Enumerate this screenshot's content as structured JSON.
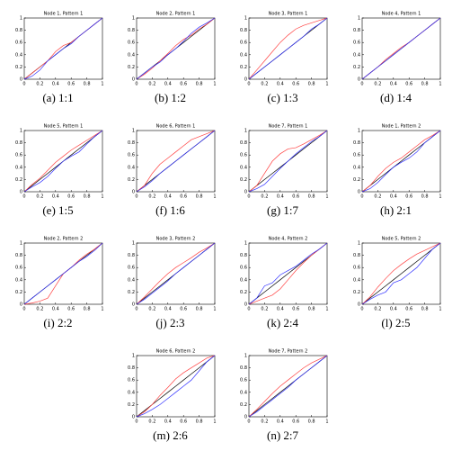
{
  "chart_data": [
    {
      "type": "line",
      "title": "Node 1, Pattern 1",
      "caption": "(a) 1:1",
      "x": [
        0,
        0.1,
        0.2,
        0.3,
        0.4,
        0.5,
        0.6,
        0.7,
        0.8,
        0.9,
        1
      ],
      "xlim": [
        0,
        1
      ],
      "ylim": [
        0,
        1
      ],
      "xticks": [
        0,
        0.2,
        0.4,
        0.6,
        0.8,
        1
      ],
      "yticks": [
        0,
        0.2,
        0.4,
        0.6,
        0.8,
        1
      ],
      "series": [
        {
          "color": "#000000",
          "values": [
            0,
            0.1,
            0.2,
            0.3,
            0.4,
            0.5,
            0.6,
            0.7,
            0.8,
            0.9,
            1
          ]
        },
        {
          "color": "#ff4040",
          "values": [
            0,
            0.1,
            0.2,
            0.3,
            0.45,
            0.55,
            0.6,
            0.7,
            0.8,
            0.9,
            1
          ]
        },
        {
          "color": "#3030ff",
          "values": [
            0,
            0.05,
            0.15,
            0.3,
            0.4,
            0.5,
            0.58,
            0.7,
            0.8,
            0.9,
            1
          ]
        }
      ]
    },
    {
      "type": "line",
      "title": "Node 2, Pattern 1",
      "caption": "(b) 1:2",
      "x": [
        0,
        0.1,
        0.2,
        0.3,
        0.4,
        0.5,
        0.6,
        0.7,
        0.8,
        0.9,
        1
      ],
      "xlim": [
        0,
        1
      ],
      "ylim": [
        0,
        1
      ],
      "xticks": [
        0,
        0.2,
        0.4,
        0.6,
        0.8,
        1
      ],
      "yticks": [
        0,
        0.2,
        0.4,
        0.6,
        0.8,
        1
      ],
      "series": [
        {
          "color": "#000000",
          "values": [
            0,
            0.1,
            0.2,
            0.3,
            0.4,
            0.5,
            0.6,
            0.7,
            0.8,
            0.9,
            1
          ]
        },
        {
          "color": "#ff4040",
          "values": [
            0,
            0.08,
            0.18,
            0.3,
            0.42,
            0.55,
            0.65,
            0.72,
            0.82,
            0.9,
            1
          ]
        },
        {
          "color": "#3030ff",
          "values": [
            0,
            0.1,
            0.2,
            0.28,
            0.4,
            0.5,
            0.62,
            0.75,
            0.85,
            0.92,
            1
          ]
        }
      ]
    },
    {
      "type": "line",
      "title": "Node 3, Pattern 1",
      "caption": "(c) 1:3",
      "x": [
        0,
        0.1,
        0.2,
        0.3,
        0.4,
        0.5,
        0.6,
        0.7,
        0.8,
        0.9,
        1
      ],
      "xlim": [
        0,
        1
      ],
      "ylim": [
        0,
        1
      ],
      "xticks": [
        0,
        0.2,
        0.4,
        0.6,
        0.8,
        1
      ],
      "yticks": [
        0,
        0.2,
        0.4,
        0.6,
        0.8,
        1
      ],
      "series": [
        {
          "color": "#000000",
          "values": [
            0,
            0.1,
            0.2,
            0.3,
            0.4,
            0.5,
            0.6,
            0.7,
            0.8,
            0.9,
            1
          ]
        },
        {
          "color": "#ff4040",
          "values": [
            0,
            0.15,
            0.3,
            0.45,
            0.6,
            0.72,
            0.82,
            0.88,
            0.92,
            0.96,
            1
          ]
        },
        {
          "color": "#3030ff",
          "values": [
            0,
            0.1,
            0.2,
            0.3,
            0.4,
            0.5,
            0.6,
            0.7,
            0.82,
            0.9,
            1
          ]
        }
      ]
    },
    {
      "type": "line",
      "title": "Node 4, Pattern 1",
      "caption": "(d) 1:4",
      "x": [
        0,
        0.1,
        0.2,
        0.3,
        0.4,
        0.5,
        0.6,
        0.7,
        0.8,
        0.9,
        1
      ],
      "xlim": [
        0,
        1
      ],
      "ylim": [
        0,
        1
      ],
      "xticks": [
        0,
        0.2,
        0.4,
        0.6,
        0.8,
        1
      ],
      "yticks": [
        0,
        0.2,
        0.4,
        0.6,
        0.8,
        1
      ],
      "series": [
        {
          "color": "#000000",
          "values": [
            0,
            0.1,
            0.2,
            0.3,
            0.4,
            0.5,
            0.6,
            0.7,
            0.8,
            0.9,
            1
          ]
        },
        {
          "color": "#ff4040",
          "values": [
            0,
            0.1,
            0.2,
            0.32,
            0.42,
            0.52,
            0.6,
            0.7,
            0.8,
            0.9,
            1
          ]
        },
        {
          "color": "#3030ff",
          "values": [
            0,
            0.1,
            0.2,
            0.3,
            0.4,
            0.5,
            0.6,
            0.7,
            0.8,
            0.9,
            1
          ]
        }
      ]
    },
    {
      "type": "line",
      "title": "Node 5, Pattern 1",
      "caption": "(e) 1:5",
      "x": [
        0,
        0.1,
        0.2,
        0.3,
        0.4,
        0.5,
        0.6,
        0.7,
        0.8,
        0.9,
        1
      ],
      "xlim": [
        0,
        1
      ],
      "ylim": [
        0,
        1
      ],
      "xticks": [
        0,
        0.2,
        0.4,
        0.6,
        0.8,
        1
      ],
      "yticks": [
        0,
        0.2,
        0.4,
        0.6,
        0.8,
        1
      ],
      "series": [
        {
          "color": "#000000",
          "values": [
            0,
            0.1,
            0.2,
            0.3,
            0.4,
            0.5,
            0.6,
            0.7,
            0.8,
            0.9,
            1
          ]
        },
        {
          "color": "#ff4040",
          "values": [
            0,
            0.12,
            0.22,
            0.35,
            0.48,
            0.58,
            0.68,
            0.76,
            0.84,
            0.92,
            1
          ]
        },
        {
          "color": "#3030ff",
          "values": [
            0,
            0.08,
            0.15,
            0.25,
            0.38,
            0.5,
            0.58,
            0.65,
            0.78,
            0.9,
            1
          ]
        }
      ]
    },
    {
      "type": "line",
      "title": "Node 6, Pattern 1",
      "caption": "(f) 1:6",
      "x": [
        0,
        0.1,
        0.2,
        0.3,
        0.4,
        0.5,
        0.6,
        0.7,
        0.8,
        0.9,
        1
      ],
      "xlim": [
        0,
        1
      ],
      "ylim": [
        0,
        1
      ],
      "xticks": [
        0,
        0.2,
        0.4,
        0.6,
        0.8,
        1
      ],
      "yticks": [
        0,
        0.2,
        0.4,
        0.6,
        0.8,
        1
      ],
      "series": [
        {
          "color": "#000000",
          "values": [
            0,
            0.1,
            0.2,
            0.3,
            0.4,
            0.5,
            0.6,
            0.7,
            0.8,
            0.9,
            1
          ]
        },
        {
          "color": "#ff4040",
          "values": [
            0,
            0.1,
            0.3,
            0.45,
            0.55,
            0.65,
            0.75,
            0.85,
            0.9,
            0.95,
            1
          ]
        },
        {
          "color": "#3030ff",
          "values": [
            0,
            0.08,
            0.18,
            0.3,
            0.4,
            0.5,
            0.6,
            0.7,
            0.8,
            0.9,
            1
          ]
        }
      ]
    },
    {
      "type": "line",
      "title": "Node 7, Pattern 1",
      "caption": "(g) 1:7",
      "x": [
        0,
        0.1,
        0.2,
        0.3,
        0.4,
        0.5,
        0.6,
        0.7,
        0.8,
        0.9,
        1
      ],
      "xlim": [
        0,
        1
      ],
      "ylim": [
        0,
        1
      ],
      "xticks": [
        0,
        0.2,
        0.4,
        0.6,
        0.8,
        1
      ],
      "yticks": [
        0,
        0.2,
        0.4,
        0.6,
        0.8,
        1
      ],
      "series": [
        {
          "color": "#000000",
          "values": [
            0,
            0.1,
            0.2,
            0.3,
            0.4,
            0.5,
            0.6,
            0.7,
            0.8,
            0.9,
            1
          ]
        },
        {
          "color": "#ff4040",
          "values": [
            0,
            0.1,
            0.3,
            0.5,
            0.62,
            0.7,
            0.72,
            0.78,
            0.85,
            0.92,
            1
          ]
        },
        {
          "color": "#3030ff",
          "values": [
            0,
            0.05,
            0.12,
            0.25,
            0.38,
            0.5,
            0.62,
            0.72,
            0.82,
            0.9,
            1
          ]
        }
      ]
    },
    {
      "type": "line",
      "title": "Node 1, Pattern 2",
      "caption": "(h) 2:1",
      "x": [
        0,
        0.1,
        0.2,
        0.3,
        0.4,
        0.5,
        0.6,
        0.7,
        0.8,
        0.9,
        1
      ],
      "xlim": [
        0,
        1
      ],
      "ylim": [
        0,
        1
      ],
      "xticks": [
        0,
        0.2,
        0.4,
        0.6,
        0.8,
        1
      ],
      "yticks": [
        0,
        0.2,
        0.4,
        0.6,
        0.8,
        1
      ],
      "series": [
        {
          "color": "#000000",
          "values": [
            0,
            0.1,
            0.2,
            0.3,
            0.4,
            0.5,
            0.6,
            0.7,
            0.8,
            0.9,
            1
          ]
        },
        {
          "color": "#ff4040",
          "values": [
            0,
            0.1,
            0.25,
            0.38,
            0.48,
            0.55,
            0.65,
            0.75,
            0.85,
            0.92,
            1
          ]
        },
        {
          "color": "#3030ff",
          "values": [
            0,
            0.05,
            0.15,
            0.28,
            0.4,
            0.48,
            0.55,
            0.65,
            0.8,
            0.9,
            1
          ]
        }
      ]
    },
    {
      "type": "line",
      "title": "Node 2, Pattern 2",
      "caption": "(i) 2:2",
      "x": [
        0,
        0.1,
        0.2,
        0.3,
        0.4,
        0.5,
        0.6,
        0.7,
        0.8,
        0.9,
        1
      ],
      "xlim": [
        0,
        1
      ],
      "ylim": [
        0,
        1
      ],
      "xticks": [
        0,
        0.2,
        0.4,
        0.6,
        0.8,
        1
      ],
      "yticks": [
        0,
        0.2,
        0.4,
        0.6,
        0.8,
        1
      ],
      "series": [
        {
          "color": "#000000",
          "values": [
            0,
            0.1,
            0.2,
            0.3,
            0.4,
            0.5,
            0.6,
            0.7,
            0.8,
            0.9,
            1
          ]
        },
        {
          "color": "#ff4040",
          "values": [
            0,
            0.02,
            0.05,
            0.1,
            0.3,
            0.5,
            0.6,
            0.72,
            0.82,
            0.9,
            1
          ]
        },
        {
          "color": "#3030ff",
          "values": [
            0,
            0.1,
            0.2,
            0.3,
            0.4,
            0.5,
            0.6,
            0.7,
            0.78,
            0.88,
            1
          ]
        }
      ]
    },
    {
      "type": "line",
      "title": "Node 3, Pattern 2",
      "caption": "(j) 2:3",
      "x": [
        0,
        0.1,
        0.2,
        0.3,
        0.4,
        0.5,
        0.6,
        0.7,
        0.8,
        0.9,
        1
      ],
      "xlim": [
        0,
        1
      ],
      "ylim": [
        0,
        1
      ],
      "xticks": [
        0,
        0.2,
        0.4,
        0.6,
        0.8,
        1
      ],
      "yticks": [
        0,
        0.2,
        0.4,
        0.6,
        0.8,
        1
      ],
      "series": [
        {
          "color": "#000000",
          "values": [
            0,
            0.1,
            0.2,
            0.3,
            0.4,
            0.5,
            0.6,
            0.7,
            0.8,
            0.9,
            1
          ]
        },
        {
          "color": "#ff4040",
          "values": [
            0,
            0.12,
            0.25,
            0.38,
            0.5,
            0.6,
            0.68,
            0.76,
            0.85,
            0.92,
            1
          ]
        },
        {
          "color": "#3030ff",
          "values": [
            0,
            0.08,
            0.18,
            0.28,
            0.38,
            0.5,
            0.6,
            0.7,
            0.8,
            0.9,
            1
          ]
        }
      ]
    },
    {
      "type": "line",
      "title": "Node 4, Pattern 2",
      "caption": "(k) 2:4",
      "x": [
        0,
        0.1,
        0.2,
        0.3,
        0.4,
        0.5,
        0.6,
        0.7,
        0.8,
        0.9,
        1
      ],
      "xlim": [
        0,
        1
      ],
      "ylim": [
        0,
        1
      ],
      "xticks": [
        0,
        0.2,
        0.4,
        0.6,
        0.8,
        1
      ],
      "yticks": [
        0,
        0.2,
        0.4,
        0.6,
        0.8,
        1
      ],
      "series": [
        {
          "color": "#000000",
          "values": [
            0,
            0.1,
            0.2,
            0.3,
            0.4,
            0.5,
            0.6,
            0.7,
            0.8,
            0.9,
            1
          ]
        },
        {
          "color": "#ff4040",
          "values": [
            0,
            0.05,
            0.1,
            0.15,
            0.25,
            0.4,
            0.55,
            0.68,
            0.8,
            0.9,
            1
          ]
        },
        {
          "color": "#3030ff",
          "values": [
            0,
            0.1,
            0.3,
            0.35,
            0.48,
            0.55,
            0.62,
            0.72,
            0.82,
            0.9,
            1
          ]
        }
      ]
    },
    {
      "type": "line",
      "title": "Node 5, Pattern 2",
      "caption": "(l) 2:5",
      "x": [
        0,
        0.1,
        0.2,
        0.3,
        0.4,
        0.5,
        0.6,
        0.7,
        0.8,
        0.9,
        1
      ],
      "xlim": [
        0,
        1
      ],
      "ylim": [
        0,
        1
      ],
      "xticks": [
        0,
        0.2,
        0.4,
        0.6,
        0.8,
        1
      ],
      "yticks": [
        0,
        0.2,
        0.4,
        0.6,
        0.8,
        1
      ],
      "series": [
        {
          "color": "#000000",
          "values": [
            0,
            0.1,
            0.2,
            0.3,
            0.4,
            0.5,
            0.6,
            0.7,
            0.8,
            0.9,
            1
          ]
        },
        {
          "color": "#ff4040",
          "values": [
            0,
            0.12,
            0.28,
            0.42,
            0.55,
            0.65,
            0.74,
            0.82,
            0.88,
            0.94,
            1
          ]
        },
        {
          "color": "#3030ff",
          "values": [
            0,
            0.08,
            0.15,
            0.2,
            0.35,
            0.4,
            0.5,
            0.6,
            0.75,
            0.9,
            1
          ]
        }
      ]
    },
    {
      "type": "line",
      "title": "Node 6, Pattern 2",
      "caption": "(m) 2:6",
      "x": [
        0,
        0.1,
        0.2,
        0.3,
        0.4,
        0.5,
        0.6,
        0.7,
        0.8,
        0.9,
        1
      ],
      "xlim": [
        0,
        1
      ],
      "ylim": [
        0,
        1
      ],
      "xticks": [
        0,
        0.2,
        0.4,
        0.6,
        0.8,
        1
      ],
      "yticks": [
        0,
        0.2,
        0.4,
        0.6,
        0.8,
        1
      ],
      "series": [
        {
          "color": "#000000",
          "values": [
            0,
            0.1,
            0.2,
            0.3,
            0.4,
            0.5,
            0.6,
            0.7,
            0.8,
            0.9,
            1
          ]
        },
        {
          "color": "#ff4040",
          "values": [
            0,
            0.08,
            0.2,
            0.35,
            0.48,
            0.62,
            0.72,
            0.8,
            0.88,
            0.96,
            1
          ]
        },
        {
          "color": "#3030ff",
          "values": [
            0,
            0.05,
            0.12,
            0.2,
            0.3,
            0.4,
            0.5,
            0.6,
            0.75,
            0.9,
            1
          ]
        }
      ]
    },
    {
      "type": "line",
      "title": "Node 7, Pattern 2",
      "caption": "(n) 2:7",
      "x": [
        0,
        0.1,
        0.2,
        0.3,
        0.4,
        0.5,
        0.6,
        0.7,
        0.8,
        0.9,
        1
      ],
      "xlim": [
        0,
        1
      ],
      "ylim": [
        0,
        1
      ],
      "xticks": [
        0,
        0.2,
        0.4,
        0.6,
        0.8,
        1
      ],
      "yticks": [
        0,
        0.2,
        0.4,
        0.6,
        0.8,
        1
      ],
      "series": [
        {
          "color": "#000000",
          "values": [
            0,
            0.1,
            0.2,
            0.3,
            0.4,
            0.5,
            0.6,
            0.7,
            0.8,
            0.9,
            1
          ]
        },
        {
          "color": "#ff4040",
          "values": [
            0,
            0.12,
            0.25,
            0.38,
            0.5,
            0.6,
            0.7,
            0.8,
            0.88,
            0.94,
            1
          ]
        },
        {
          "color": "#3030ff",
          "values": [
            0,
            0.08,
            0.18,
            0.28,
            0.38,
            0.48,
            0.6,
            0.7,
            0.8,
            0.9,
            1
          ]
        }
      ]
    }
  ]
}
